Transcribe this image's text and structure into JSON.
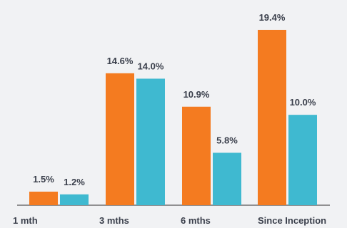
{
  "chart_data": {
    "type": "bar",
    "title": "",
    "xlabel": "",
    "ylabel": "",
    "categories": [
      "1 mth",
      "3 mths",
      "6 mths",
      "Since Inception"
    ],
    "series": [
      {
        "values": [
          1.5,
          14.6,
          10.9,
          19.4
        ],
        "labels": [
          "1.5%",
          "14.6%",
          "10.9%",
          "19.4%"
        ],
        "color": "#f47b20"
      },
      {
        "values": [
          1.2,
          14.0,
          5.8,
          10.0
        ],
        "labels": [
          "1.2%",
          "14.0%",
          "5.8%",
          "10.0%"
        ],
        "color": "#3fb9d0"
      }
    ],
    "ylim": [
      0,
      20.5
    ],
    "grid": false,
    "legend": "none"
  }
}
